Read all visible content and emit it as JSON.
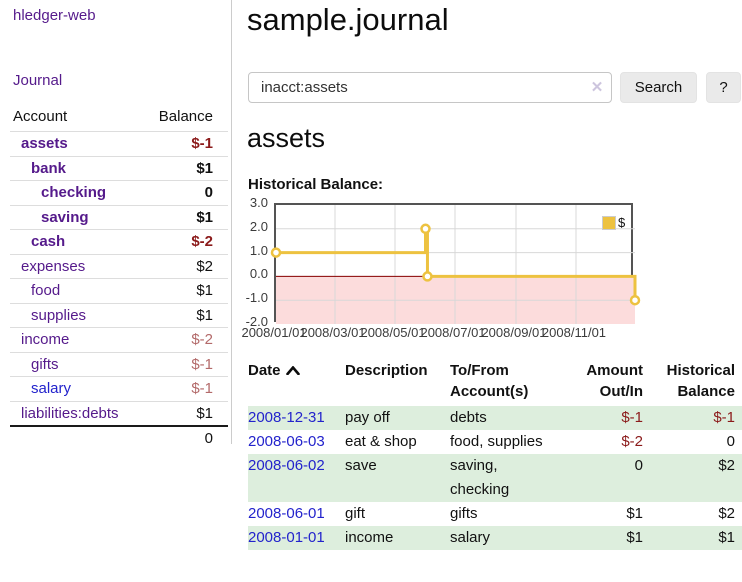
{
  "app": {
    "title": "hledger-web"
  },
  "sidebar": {
    "journal_label": "Journal",
    "table": {
      "account_header": "Account",
      "balance_header": "Balance",
      "rows": [
        {
          "label": "assets",
          "level": 1,
          "bold": true,
          "link_color": "purple",
          "balance": "$-1",
          "balance_color": "dark-red"
        },
        {
          "label": "bank",
          "level": 2,
          "bold": true,
          "link_color": "purple",
          "balance": "$1",
          "balance_color": "black"
        },
        {
          "label": "checking",
          "level": 3,
          "bold": true,
          "link_color": "purple",
          "balance": "0",
          "balance_color": "black"
        },
        {
          "label": "saving",
          "level": 3,
          "bold": true,
          "link_color": "purple",
          "balance": "$1",
          "balance_color": "black"
        },
        {
          "label": "cash",
          "level": 2,
          "bold": true,
          "link_color": "purple",
          "balance": "$-2",
          "balance_color": "dark-red"
        },
        {
          "label": "expenses",
          "level": 1,
          "bold": false,
          "link_color": "purple",
          "balance": "$2",
          "balance_color": "black"
        },
        {
          "label": "food",
          "level": 2,
          "bold": false,
          "link_color": "purple",
          "balance": "$1",
          "balance_color": "black"
        },
        {
          "label": "supplies",
          "level": 2,
          "bold": false,
          "link_color": "purple",
          "balance": "$1",
          "balance_color": "black"
        },
        {
          "label": "income",
          "level": 1,
          "bold": false,
          "link_color": "purple",
          "balance": "$-2",
          "balance_color": "light-red"
        },
        {
          "label": "gifts",
          "level": 2,
          "bold": false,
          "link_color": "purple",
          "balance": "$-1",
          "balance_color": "light-red"
        },
        {
          "label": "salary",
          "level": 2,
          "bold": false,
          "link_color": "blue",
          "balance": "$-1",
          "balance_color": "light-red"
        },
        {
          "label": "liabilities:debts",
          "level": 1,
          "bold": false,
          "link_color": "purple",
          "balance": "$1",
          "balance_color": "black"
        }
      ],
      "total": "0"
    }
  },
  "main": {
    "title": "sample.journal",
    "search": {
      "value": "inacct:assets",
      "clear_icon": "✕",
      "button_label": "Search",
      "help_label": "?"
    },
    "account_heading": "assets",
    "chart_heading": "Historical Balance:"
  },
  "chart_data": {
    "type": "line",
    "title": "Historical Balance",
    "step": true,
    "xlabel": "",
    "ylabel": "",
    "ylim": [
      -2.0,
      3.0
    ],
    "xlim": [
      "2008/01/01",
      "2008/12/31"
    ],
    "yticks": [
      "3.0",
      "2.0",
      "1.0",
      "0.0",
      "-1.0",
      "-2.0"
    ],
    "xticks": [
      "2008/01/01",
      "2008/03/01",
      "2008/05/01",
      "2008/07/01",
      "2008/09/01",
      "2008/11/01"
    ],
    "legend_position": "top-right",
    "grid": true,
    "negative_region_color": "#fcdcdc",
    "zero_line_color": "#8b0000",
    "series": [
      {
        "name": "$",
        "color": "#edc240",
        "points": [
          [
            "2008/01/01",
            1
          ],
          [
            "2008/06/01",
            2
          ],
          [
            "2008/06/03",
            0
          ],
          [
            "2008/12/31",
            -1
          ]
        ]
      }
    ]
  },
  "register": {
    "headers": [
      {
        "label": "Date",
        "sort_icon": "chevron-up",
        "align": "left"
      },
      {
        "label": "Description",
        "align": "left"
      },
      {
        "label": "To/From Account(s)",
        "align": "left"
      },
      {
        "label": "Amount Out/In",
        "align": "right"
      },
      {
        "label": "Historical Balance",
        "align": "right"
      }
    ],
    "rows": [
      {
        "date": "2008-12-31",
        "description": "pay off",
        "accounts": "debts",
        "amount": "$-1",
        "balance": "$-1"
      },
      {
        "date": "2008-06-03",
        "description": "eat & shop",
        "accounts": "food, supplies",
        "amount": "$-2",
        "balance": "0"
      },
      {
        "date": "2008-06-02",
        "description": "save",
        "accounts": "saving, checking",
        "amount": "0",
        "balance": "$2"
      },
      {
        "date": "2008-06-01",
        "description": "gift",
        "accounts": "gifts",
        "amount": "$1",
        "balance": "$2"
      },
      {
        "date": "2008-01-01",
        "description": "income",
        "accounts": "salary",
        "amount": "$1",
        "balance": "$1"
      }
    ]
  }
}
